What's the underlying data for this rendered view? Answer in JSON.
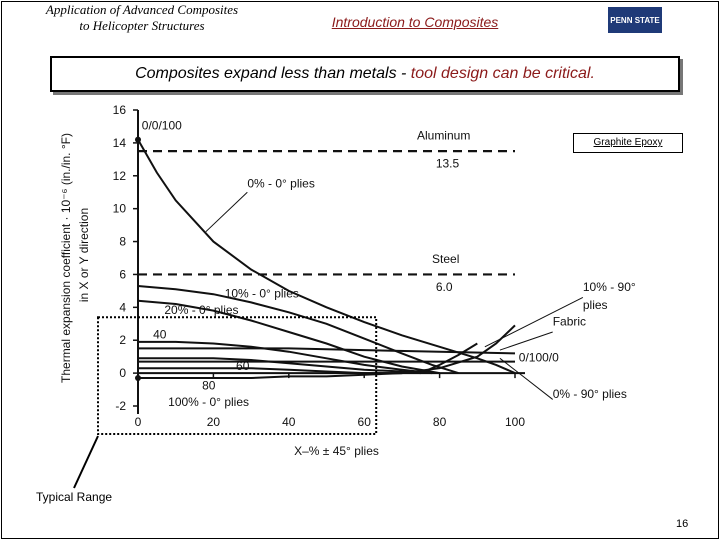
{
  "header": {
    "course_line1": "Application of Advanced Composites",
    "course_line2": "to Helicopter Structures",
    "lecture_title": "Introduction to Composites",
    "logo_text": "PENN STATE"
  },
  "heading": {
    "part1": "Composites expand less than metals - ",
    "part2": "tool design can be critical."
  },
  "annotations": {
    "typical_range": "Typical Range",
    "graphite_epoxy": "Graphite Epoxy",
    "page_number": "16"
  },
  "colors": {
    "accent": "#8b1a1a",
    "ink": "#111111",
    "range_box": "#000000"
  },
  "chart_data": {
    "type": "line",
    "xlabel": "X–% ± 45° plies",
    "ylabel_line1": "Thermal expansion coefficient · 10⁻⁶ (in./in. °F)",
    "ylabel_line2": "in X or Y direction",
    "xlim": [
      0,
      100
    ],
    "ylim": [
      -2,
      16
    ],
    "xticks": [
      0,
      20,
      40,
      60,
      80,
      100
    ],
    "yticks": [
      -2,
      0,
      2,
      4,
      6,
      8,
      10,
      12,
      14,
      16
    ],
    "typical_range": {
      "x": [
        0,
        60
      ],
      "y": [
        -2,
        3.4
      ]
    },
    "reference_lines": [
      {
        "name": "Aluminum",
        "value_label": "13.5",
        "y": 13.5
      },
      {
        "name": "Steel",
        "value_label": "6.0",
        "y": 6.0
      }
    ],
    "series": [
      {
        "name": "0% - 0° plies",
        "x": [
          0,
          5,
          10,
          20,
          30,
          40,
          50,
          60,
          70,
          80,
          90,
          95,
          100
        ],
        "y": [
          14.2,
          12.2,
          10.5,
          8.0,
          6.3,
          5.0,
          4.0,
          3.1,
          2.3,
          1.6,
          0.9,
          0.5,
          0.0
        ]
      },
      {
        "name": "10% - 0° plies",
        "x": [
          0,
          10,
          20,
          30,
          40,
          50,
          60,
          70,
          78,
          85
        ],
        "y": [
          5.3,
          5.1,
          4.8,
          4.3,
          3.7,
          3.0,
          2.1,
          1.2,
          0.5,
          0.0
        ]
      },
      {
        "name": "20% - 0° plies",
        "x": [
          0,
          10,
          20,
          30,
          40,
          50,
          60,
          70,
          80
        ],
        "y": [
          4.4,
          4.2,
          3.8,
          3.2,
          2.5,
          1.8,
          1.0,
          0.4,
          0.0
        ]
      },
      {
        "name": "40",
        "x": [
          0,
          10,
          20,
          30,
          40,
          50,
          60,
          70,
          78
        ],
        "y": [
          1.9,
          1.9,
          1.8,
          1.6,
          1.3,
          0.9,
          0.5,
          0.2,
          0.0
        ]
      },
      {
        "name": "60",
        "x": [
          0,
          10,
          20,
          30,
          40,
          50,
          60,
          70,
          75
        ],
        "y": [
          0.9,
          0.9,
          0.9,
          0.8,
          0.6,
          0.4,
          0.2,
          0.1,
          0.0
        ]
      },
      {
        "name": "80",
        "x": [
          0,
          10,
          20,
          30,
          40,
          50,
          60,
          70
        ],
        "y": [
          0.3,
          0.3,
          0.3,
          0.3,
          0.2,
          0.1,
          0.0,
          0.0
        ]
      },
      {
        "name": "100% - 0° plies",
        "x": [
          0,
          10,
          20,
          30,
          40,
          50,
          60,
          70
        ],
        "y": [
          -0.3,
          -0.3,
          -0.3,
          -0.3,
          -0.2,
          -0.2,
          -0.1,
          0.0
        ]
      },
      {
        "name": "0/100/0",
        "x": [
          0,
          100
        ],
        "y": [
          0.7,
          0.7
        ]
      },
      {
        "name": "Fabric",
        "x": [
          0,
          20,
          40,
          60,
          80,
          100
        ],
        "y": [
          1.5,
          1.5,
          1.5,
          1.4,
          1.3,
          1.2
        ]
      },
      {
        "name": "0% - 90° plies",
        "x": [
          70,
          80,
          90,
          95,
          100
        ],
        "y": [
          0.0,
          0.3,
          1.0,
          1.8,
          2.9
        ]
      },
      {
        "name": "10% - 90° plies",
        "x": [
          75,
          80,
          85,
          90
        ],
        "y": [
          0.0,
          0.5,
          1.1,
          1.8
        ]
      }
    ],
    "labels": [
      {
        "text": "0/0/100",
        "x": 1,
        "y": 14.8,
        "anchor": "start"
      },
      {
        "text": "Aluminum",
        "x": 74,
        "y": 14.2,
        "anchor": "start"
      },
      {
        "text": "13.5",
        "x": 79,
        "y": 12.5,
        "anchor": "start"
      },
      {
        "text": "0% - 0° plies",
        "x": 29,
        "y": 11.3,
        "anchor": "start"
      },
      {
        "text": "Steel",
        "x": 78,
        "y": 6.7,
        "anchor": "start"
      },
      {
        "text": "6.0",
        "x": 79,
        "y": 5.0,
        "anchor": "start"
      },
      {
        "text": "10% - 0° plies",
        "x": 23,
        "y": 4.6,
        "anchor": "start"
      },
      {
        "text": "20% - 0° plies",
        "x": 7,
        "y": 3.6,
        "anchor": "start"
      },
      {
        "text": "40",
        "x": 4,
        "y": 2.1,
        "anchor": "start"
      },
      {
        "text": "60",
        "x": 26,
        "y": 0.2,
        "anchor": "start"
      },
      {
        "text": "80",
        "x": 17,
        "y": -1.0,
        "anchor": "start"
      },
      {
        "text": "100% - 0° plies",
        "x": 8,
        "y": -2.0,
        "anchor": "start"
      },
      {
        "text": "10% - 90°",
        "x": 118,
        "y": 5.0,
        "anchor": "start"
      },
      {
        "text": "plies",
        "x": 118,
        "y": 3.9,
        "anchor": "start"
      },
      {
        "text": "Fabric",
        "x": 110,
        "y": 2.9,
        "anchor": "start"
      },
      {
        "text": "0/100/0",
        "x": 101,
        "y": 0.7,
        "anchor": "start"
      },
      {
        "text": "0% - 90° plies",
        "x": 110,
        "y": -1.5,
        "anchor": "start"
      }
    ]
  }
}
